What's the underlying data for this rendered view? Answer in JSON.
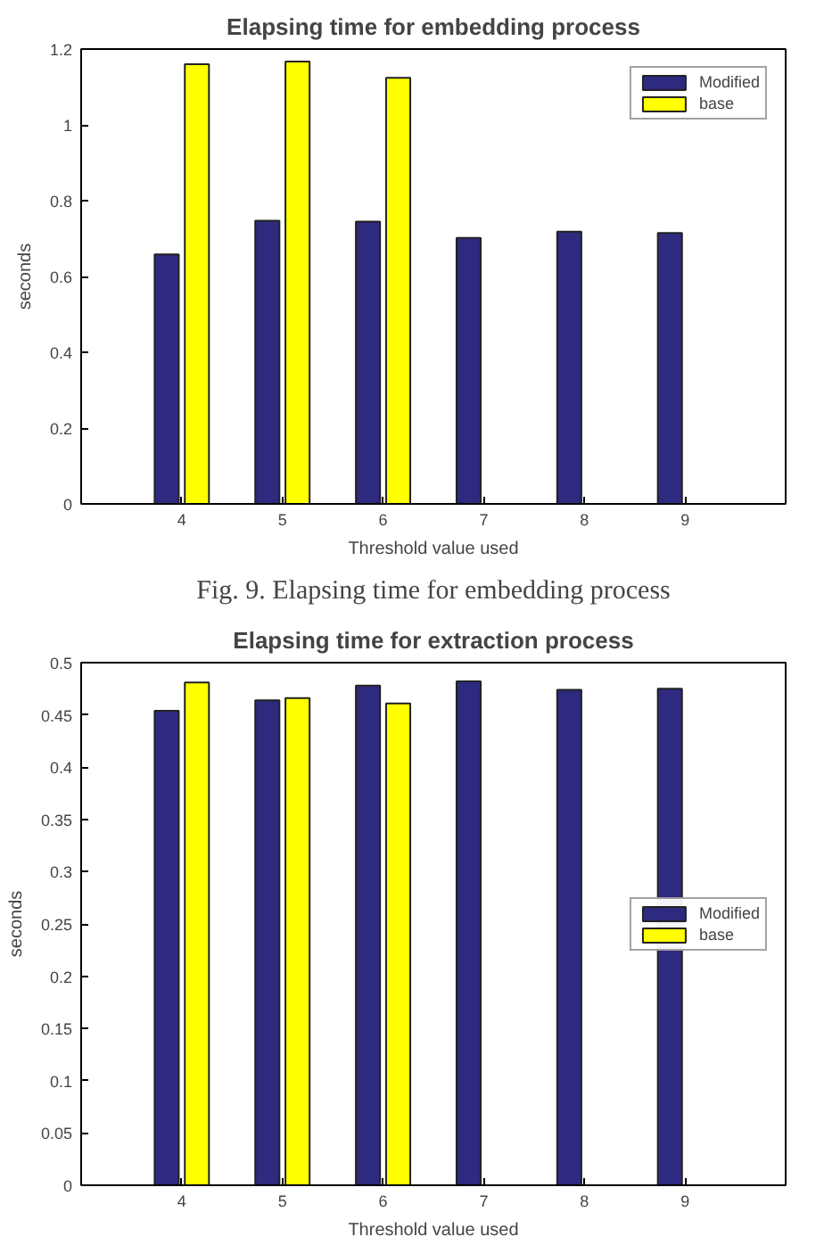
{
  "chart_data": [
    {
      "type": "bar",
      "title": "Elapsing time for embedding process",
      "xlabel": "Threshold value used",
      "ylabel": "seconds",
      "categories": [
        "4",
        "5",
        "6",
        "7",
        "8",
        "9"
      ],
      "series": [
        {
          "name": "Modified",
          "color": "#2e2a80",
          "values": [
            0.658,
            0.747,
            0.745,
            0.702,
            0.718,
            0.715
          ]
        },
        {
          "name": "base",
          "color": "#ffff00",
          "values": [
            1.16,
            1.167,
            1.124,
            null,
            null,
            null
          ]
        }
      ],
      "ylim": [
        0,
        1.2
      ],
      "yticks": [
        0,
        0.2,
        0.4,
        0.6,
        0.8,
        1,
        1.2
      ],
      "legend": "top right",
      "grid": false,
      "annotations": [
        "Fig. 9. Elapsing time for embedding process"
      ]
    },
    {
      "type": "bar",
      "title": "Elapsing time for extraction process",
      "xlabel": "Threshold value used",
      "ylabel": "seconds",
      "categories": [
        "4",
        "5",
        "6",
        "7",
        "8",
        "9"
      ],
      "series": [
        {
          "name": "Modified",
          "color": "#2e2a80",
          "values": [
            0.454,
            0.464,
            0.478,
            0.482,
            0.474,
            0.475
          ]
        },
        {
          "name": "base",
          "color": "#ffff00",
          "values": [
            0.481,
            0.466,
            0.461,
            null,
            null,
            null
          ]
        }
      ],
      "ylim": [
        0,
        0.5
      ],
      "yticks": [
        0,
        0.05,
        0.1,
        0.15,
        0.2,
        0.25,
        0.3,
        0.35,
        0.4,
        0.45,
        0.5
      ],
      "legend": "right",
      "grid": false
    }
  ]
}
